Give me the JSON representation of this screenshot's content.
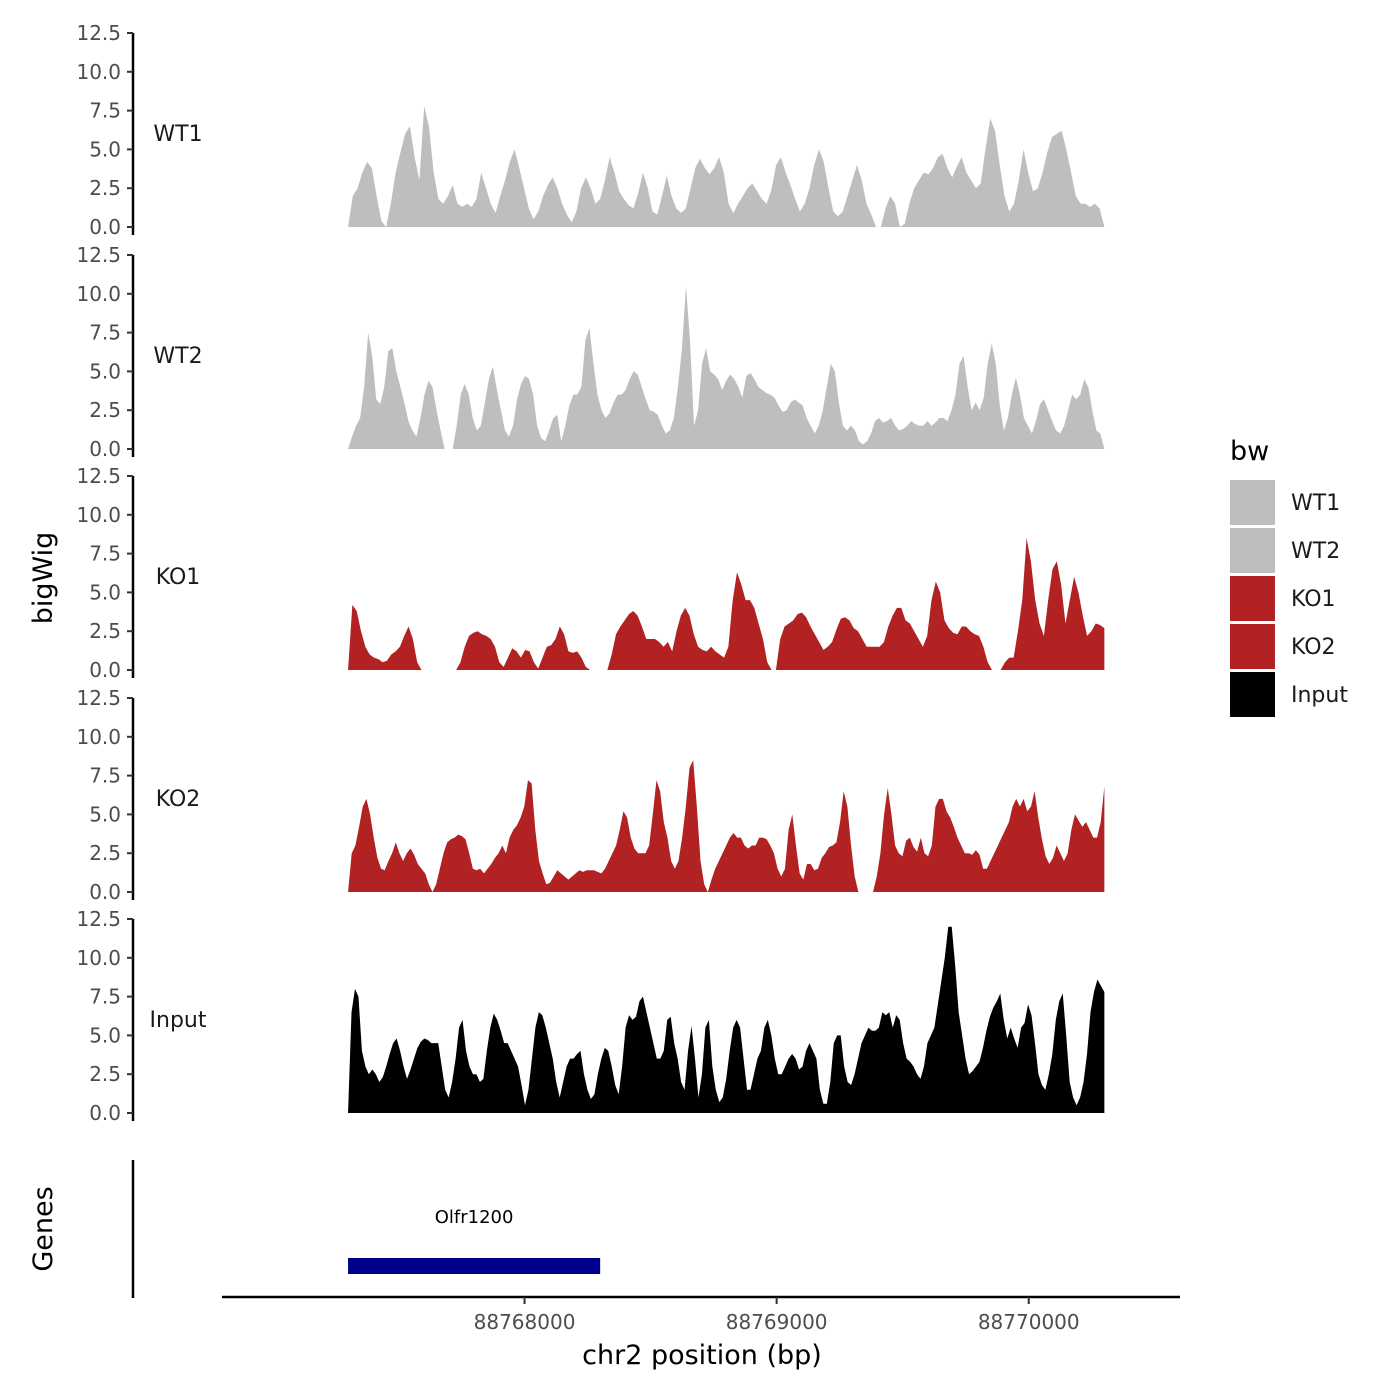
{
  "chart_data": {
    "type": "area",
    "ylabel": "bigWig",
    "xlabel": "chr2 position (bp)",
    "x_range": [
      88767300,
      88770300
    ],
    "xlim": [
      88766800,
      88770600
    ],
    "x_ticks": [
      88768000,
      88769000,
      88770000
    ],
    "x_tick_labels": [
      "88768000",
      "88769000",
      "88770000"
    ],
    "y_ticks": [
      0,
      2.5,
      5,
      7.5,
      10,
      12.5
    ],
    "y_tick_labels": [
      "0.0",
      "2.5",
      "5.0",
      "7.5",
      "10.0",
      "12.5"
    ],
    "ylim": [
      0,
      12.5
    ],
    "tracks": [
      {
        "name": "WT1",
        "label": "WT1",
        "color": "#bebebe",
        "values": [
          0,
          2,
          2.5,
          3.5,
          4.2,
          3.8,
          2,
          0.4,
          0,
          1.5,
          3.5,
          4.8,
          6,
          6.5,
          4.5,
          3,
          7.8,
          6.5,
          3.5,
          1.8,
          1.5,
          2,
          2.7,
          1.5,
          1.3,
          1.5,
          1.3,
          1.8,
          3.5,
          2.5,
          1.5,
          0.9,
          2,
          3,
          4.2,
          5,
          3.8,
          2.5,
          1.2,
          0.5,
          1,
          2,
          2.7,
          3.2,
          2.5,
          1.5,
          0.8,
          0.3,
          1,
          2.5,
          3.2,
          2.5,
          1.5,
          1.8,
          3,
          4.5,
          3.5,
          2.3,
          1.8,
          1.4,
          1.2,
          2.2,
          3.5,
          2.5,
          1,
          0.8,
          2,
          3.3,
          2,
          1.2,
          0.9,
          1.2,
          2.5,
          3.8,
          4.4,
          3.8,
          3.4,
          3.8,
          4.5,
          3.5,
          1.5,
          0.9,
          1.5,
          2,
          2.5,
          2.8,
          2.3,
          1.8,
          1.5,
          2.4,
          4,
          4.5,
          3.5,
          2.7,
          1.8,
          1,
          1.5,
          2.5,
          4,
          5,
          4.2,
          2.5,
          1,
          0.7,
          1,
          2,
          3,
          4,
          3,
          1.5,
          0.8,
          0,
          0,
          1.2,
          2,
          1.5,
          0,
          0.2,
          1.5,
          2.5,
          3,
          3.5,
          3.4,
          3.8,
          4.5,
          4.7,
          3.8,
          3.2,
          3.9,
          4.5,
          3.5,
          3,
          2.5,
          2.8,
          5,
          7,
          6.2,
          4,
          2,
          1,
          1.5,
          3,
          5,
          3.5,
          2.3,
          2.5,
          3.5,
          4.8,
          5.8,
          6,
          6.2,
          5,
          3.5,
          2,
          1.5,
          1.5,
          1.3,
          1.5,
          1.2,
          0
        ]
      },
      {
        "name": "WT2",
        "label": "WT2",
        "color": "#bebebe",
        "values": [
          0,
          0.8,
          1.5,
          2,
          4,
          7.5,
          6,
          3.2,
          2.9,
          4,
          6.3,
          6.5,
          5,
          4,
          3,
          1.8,
          1.2,
          0.8,
          2,
          3.5,
          4.4,
          4,
          2.5,
          1.2,
          0,
          0,
          0,
          1.5,
          3.5,
          4.2,
          3.5,
          2,
          1.2,
          1.5,
          3,
          4.5,
          5.3,
          3.8,
          2.5,
          1.2,
          0.8,
          1.5,
          3.2,
          4.2,
          4.7,
          4.5,
          3.5,
          1.5,
          0.7,
          0.5,
          1.2,
          2,
          2.2,
          0.5,
          1.5,
          2.8,
          3.5,
          3.5,
          4,
          7,
          7.8,
          5.5,
          3.5,
          2.5,
          2,
          2.3,
          3,
          3.5,
          3.5,
          3.8,
          4.5,
          5,
          4.8,
          4,
          3.2,
          2.5,
          2.4,
          2.2,
          1.5,
          1,
          1.2,
          2,
          4,
          6.5,
          10.5,
          7,
          1.5,
          2.5,
          5.5,
          6.5,
          5,
          4.8,
          4.5,
          3.8,
          4.4,
          4.8,
          4.5,
          4,
          3.3,
          4.7,
          4.9,
          4.5,
          4,
          3.8,
          3.6,
          3.5,
          3.3,
          2.8,
          2.4,
          2.5,
          3,
          3.2,
          3,
          2.8,
          2,
          1.5,
          1,
          1.5,
          2.5,
          4,
          5.5,
          5,
          3,
          1.5,
          1.2,
          1.5,
          1.2,
          0.5,
          0.3,
          0.5,
          1,
          1.8,
          2,
          1.7,
          1.8,
          2,
          1.5,
          1.2,
          1.3,
          1.5,
          1.8,
          1.6,
          1.5,
          1.5,
          1.8,
          1.5,
          1.7,
          2,
          2,
          1.8,
          2.5,
          3.5,
          5.5,
          6,
          4,
          2.5,
          3,
          2.5,
          3.3,
          5.5,
          6.8,
          5.5,
          2.8,
          1.2,
          2,
          3.5,
          4.6,
          3.5,
          2,
          1.5,
          1,
          1.8,
          2.9,
          3.2,
          2.5,
          1.8,
          1.2,
          1,
          1.5,
          2.5,
          3.5,
          3.2,
          3.5,
          4.5,
          4,
          2.5,
          1.2,
          1,
          0
        ]
      },
      {
        "name": "KO1",
        "label": "KO1",
        "color": "#b22222",
        "values": [
          0,
          4.2,
          3.8,
          2.5,
          1.5,
          1,
          0.8,
          0.7,
          0.5,
          0.6,
          1,
          1.2,
          1.5,
          2.2,
          2.8,
          2,
          0.5,
          0,
          0,
          0,
          0,
          0,
          0,
          0,
          0,
          0,
          0.5,
          1.5,
          2.2,
          2.4,
          2.5,
          2.3,
          2.2,
          2,
          1.5,
          0.5,
          0.2,
          0.8,
          1.4,
          1.2,
          0.8,
          1.3,
          1.2,
          0.5,
          0.1,
          0.8,
          1.5,
          1.6,
          2,
          2.8,
          2.3,
          1.2,
          1.1,
          1.2,
          0.8,
          0.2,
          0,
          0,
          0,
          0,
          0,
          1,
          2.3,
          2.8,
          3.2,
          3.6,
          3.8,
          3.5,
          2.8,
          2,
          2,
          2,
          1.8,
          1.5,
          1.8,
          1.2,
          2.5,
          3.5,
          4,
          3.5,
          2.3,
          1.5,
          1.3,
          1.2,
          1.5,
          1.2,
          1,
          0.8,
          1.5,
          4.5,
          6.3,
          5.5,
          4.5,
          4.5,
          4,
          3,
          2,
          0.5,
          0,
          0,
          2,
          2.8,
          3,
          3.2,
          3.6,
          3.7,
          3.4,
          2.8,
          2.3,
          1.8,
          1.3,
          1.5,
          1.8,
          2.6,
          3.3,
          3.4,
          3.2,
          2.7,
          2.5,
          2,
          1.5,
          1.5,
          1.5,
          1.5,
          1.8,
          2.8,
          3.5,
          4,
          4,
          3.2,
          3,
          2.5,
          2,
          1.5,
          2.2,
          4.5,
          5.7,
          5,
          3.2,
          2.7,
          2.4,
          2.3,
          2.8,
          2.8,
          2.5,
          2.3,
          2.2,
          1.5,
          0.5,
          0,
          0,
          0,
          0.5,
          0.8,
          0.8,
          2.5,
          4.5,
          8.5,
          7,
          4.5,
          3,
          2.2,
          4.5,
          6.5,
          7,
          5.5,
          3,
          4.5,
          6,
          5,
          3.5,
          2.2,
          2.5,
          3,
          2.9,
          2.7
        ]
      },
      {
        "name": "KO2",
        "label": "KO2",
        "color": "#b22222",
        "values": [
          0,
          2.5,
          3,
          4.2,
          5.5,
          6,
          5,
          3.5,
          2.2,
          1.5,
          1.4,
          2,
          2.5,
          3.2,
          2.5,
          2,
          2.5,
          2.8,
          2.4,
          1.8,
          1.5,
          1.2,
          0.5,
          0,
          0.5,
          1.5,
          2.5,
          3.2,
          3.4,
          3.5,
          3.7,
          3.6,
          3.4,
          2.5,
          1.5,
          1.4,
          1.5,
          1.2,
          1.5,
          1.8,
          2.2,
          2.5,
          3,
          2.5,
          3.5,
          4,
          4.3,
          4.8,
          5.5,
          7.2,
          7,
          4,
          2,
          1.2,
          0.5,
          0.6,
          1,
          1.4,
          1.2,
          1,
          0.8,
          1,
          1.2,
          1.4,
          1.3,
          1.4,
          1.4,
          1.4,
          1.3,
          1.2,
          1.5,
          2,
          2.5,
          3,
          4,
          5.2,
          4.8,
          3.5,
          2.8,
          2.5,
          2.5,
          2.5,
          3,
          5,
          7.2,
          6.5,
          4.5,
          3.5,
          2,
          1.5,
          2,
          3.5,
          5.5,
          8,
          8.5,
          5.5,
          2,
          0.5,
          0,
          0.8,
          1.5,
          2,
          2.5,
          3,
          3.5,
          3.8,
          3.5,
          3.5,
          3,
          2.8,
          3,
          3,
          3.5,
          3.5,
          3.4,
          3,
          2.5,
          1.5,
          1,
          1.5,
          4,
          5,
          3,
          1.2,
          0.8,
          1.8,
          1.8,
          1.4,
          1.5,
          2.2,
          2.5,
          2.9,
          3,
          3.2,
          4.5,
          6.5,
          5.5,
          3,
          1,
          0,
          0,
          0,
          0,
          0,
          1,
          2.5,
          5,
          6.7,
          5,
          3,
          2.5,
          2.3,
          3.3,
          3.5,
          2.9,
          2.6,
          3.5,
          2.5,
          2.3,
          3,
          5.5,
          6,
          6,
          5.2,
          4.8,
          4.2,
          3.5,
          3,
          2.5,
          2.5,
          2.4,
          2.7,
          2.4,
          1.5,
          1.5,
          2,
          2.5,
          3,
          3.5,
          4,
          4.5,
          5.5,
          6,
          5.5,
          6,
          5.2,
          5.5,
          6.5,
          4.8,
          3.4,
          2.3,
          1.8,
          2.2,
          3,
          2.5,
          2,
          2.5,
          4,
          5,
          4.6,
          4.2,
          4.5,
          4,
          3.5,
          3.5,
          4.5,
          6.8
        ]
      },
      {
        "name": "Input",
        "label": "Input",
        "color": "#000000",
        "values": [
          0,
          6.5,
          8,
          7.5,
          4,
          3,
          2.5,
          2.8,
          2.5,
          2,
          2.3,
          3,
          3.8,
          4.5,
          4.8,
          4,
          3,
          2.2,
          2.8,
          3.5,
          4.2,
          4.6,
          4.8,
          4.7,
          4.5,
          4.5,
          4.5,
          3,
          1.5,
          1,
          2,
          3.5,
          5.5,
          6,
          4,
          3,
          2.5,
          2.5,
          2,
          2.2,
          4,
          5.5,
          6.4,
          6,
          5.3,
          4.5,
          4.5,
          4,
          3.5,
          3,
          1.8,
          0.5,
          1.5,
          3.5,
          5.5,
          6.5,
          6.3,
          5.5,
          4.5,
          3.5,
          2,
          1,
          2,
          3,
          3.5,
          3.5,
          3.8,
          4,
          2.5,
          1.5,
          0.9,
          1.2,
          2.5,
          3.5,
          4.2,
          4,
          3,
          1.8,
          1.2,
          3,
          5.5,
          6.3,
          6,
          6.2,
          7.2,
          7.5,
          6.5,
          5.5,
          4.5,
          3.5,
          3.5,
          4,
          6,
          6.2,
          4.5,
          3.5,
          2,
          1.5,
          4,
          5.6,
          3.5,
          1,
          2.5,
          5.5,
          6,
          3,
          1.5,
          0.7,
          1,
          2.2,
          4,
          5.5,
          6,
          5.5,
          3.5,
          1.5,
          1.5,
          2.5,
          3.5,
          4,
          5.5,
          6,
          5,
          3.5,
          2.5,
          2.5,
          3,
          3.5,
          3.8,
          3.5,
          2.8,
          3,
          4,
          4.5,
          4,
          3.5,
          1.5,
          0.6,
          0.6,
          2,
          4.5,
          5,
          5,
          3,
          2,
          1.8,
          2.5,
          3.5,
          4.5,
          5,
          5.5,
          5.3,
          5.3,
          5.5,
          6.5,
          6.3,
          6.5,
          5.5,
          6.3,
          6,
          4.5,
          3.5,
          3.3,
          3,
          2.5,
          2.2,
          3,
          4.5,
          5,
          5.5,
          7,
          8.5,
          10,
          12,
          12,
          9.5,
          6.5,
          5,
          3.5,
          2.5,
          2.7,
          3,
          3.3,
          4.2,
          5.3,
          6.2,
          6.8,
          7.2,
          7.7,
          6,
          4.8,
          5.5,
          4.8,
          4.2,
          5.5,
          5.8,
          7,
          6.3,
          4.5,
          2.5,
          1.8,
          1.5,
          2.5,
          3.8,
          6,
          7.2,
          7.7,
          5,
          2,
          1,
          0.5,
          1,
          2,
          3.8,
          6.5,
          7.8,
          8.6,
          8.2,
          7.8
        ]
      }
    ],
    "genes_track": {
      "label": "Genes",
      "gene_name": "Olfr1200",
      "start": 88767300,
      "end": 88768300,
      "color": "#00008b"
    },
    "legend": {
      "title": "bw",
      "position": "right",
      "entries": [
        {
          "label": "WT1",
          "color": "#bebebe"
        },
        {
          "label": "WT2",
          "color": "#bebebe"
        },
        {
          "label": "KO1",
          "color": "#b22222"
        },
        {
          "label": "KO2",
          "color": "#b22222"
        },
        {
          "label": "Input",
          "color": "#000000"
        }
      ]
    },
    "grid": false
  }
}
